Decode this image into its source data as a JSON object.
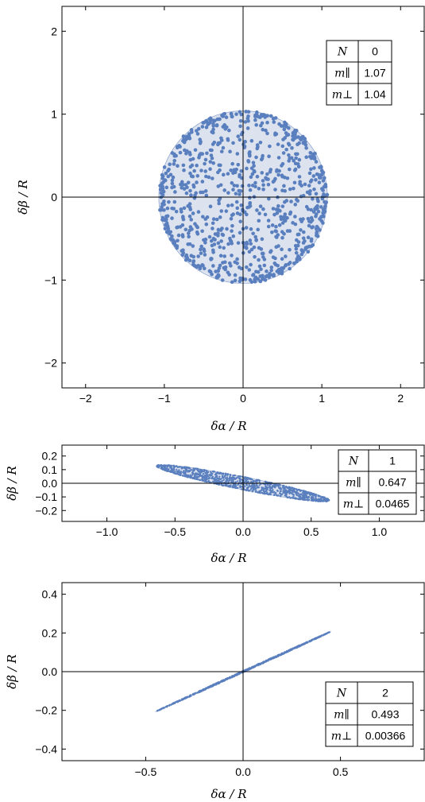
{
  "chart_data": [
    {
      "type": "scatter",
      "xlabel": "δα / R",
      "ylabel": "δβ / R",
      "xlim": [
        -2.3,
        2.3
      ],
      "ylim": [
        -2.3,
        2.3
      ],
      "x_ticks": [
        "−2",
        "−1",
        "0",
        "1",
        "2"
      ],
      "x_tick_values": [
        -2,
        -1,
        0,
        1,
        2
      ],
      "y_ticks": [
        "−2",
        "−1",
        "0",
        "1",
        "2"
      ],
      "y_tick_values": [
        -2,
        -1,
        0,
        1,
        2
      ],
      "point_cloud": {
        "shape": "disk",
        "semi_major": 1.07,
        "semi_minor": 1.04,
        "angle_deg": 0,
        "point_count": 900
      },
      "table": {
        "header": [
          "N",
          "0"
        ],
        "rows": [
          [
            "m∥",
            "1.07"
          ],
          [
            "m⊥",
            "1.04"
          ]
        ],
        "placement": "top-right"
      }
    },
    {
      "type": "scatter",
      "xlabel": "δα / R",
      "ylabel": "δβ / R",
      "xlim": [
        -1.33,
        1.33
      ],
      "ylim": [
        -0.28,
        0.28
      ],
      "x_ticks": [
        "−1.0",
        "−0.5",
        "0.0",
        "0.5",
        "1.0"
      ],
      "x_tick_values": [
        -1.0,
        -0.5,
        0.0,
        0.5,
        1.0
      ],
      "y_ticks": [
        "0.2",
        "0.1",
        "0.0",
        "−0.1",
        "−0.2"
      ],
      "y_tick_values": [
        0.2,
        0.1,
        0.0,
        -0.1,
        -0.2
      ],
      "point_cloud": {
        "shape": "ellipse",
        "semi_major": 0.647,
        "semi_minor": 0.0465,
        "angle_deg": -11.3,
        "point_count": 1100
      },
      "table": {
        "header": [
          "N",
          "1"
        ],
        "rows": [
          [
            "m∥",
            "0.647"
          ],
          [
            "m⊥",
            "0.0465"
          ]
        ],
        "placement": "right"
      }
    },
    {
      "type": "scatter",
      "xlabel": "δα / R",
      "ylabel": "δβ / R",
      "xlim": [
        -0.93,
        0.93
      ],
      "ylim": [
        -0.46,
        0.46
      ],
      "x_ticks": [
        "−0.5",
        "0.0",
        "0.5"
      ],
      "x_tick_values": [
        -0.5,
        0.0,
        0.5
      ],
      "y_ticks": [
        "0.4",
        "0.2",
        "0.0",
        "−0.2",
        "−0.4"
      ],
      "y_tick_values": [
        0.4,
        0.2,
        0.0,
        -0.2,
        -0.4
      ],
      "point_cloud": {
        "shape": "ellipse",
        "semi_major": 0.493,
        "semi_minor": 0.00366,
        "angle_deg": 24.7,
        "point_count": 700
      },
      "table": {
        "header": [
          "N",
          "2"
        ],
        "rows": [
          [
            "m∥",
            "0.493"
          ],
          [
            "m⊥",
            "0.00366"
          ]
        ],
        "placement": "bottom-right"
      }
    }
  ],
  "colors": {
    "points": "#5a7fbe",
    "fill": "#dce3ef",
    "fill_stroke": "#93a9d2",
    "axes": "#000000",
    "frame": "#000000"
  }
}
